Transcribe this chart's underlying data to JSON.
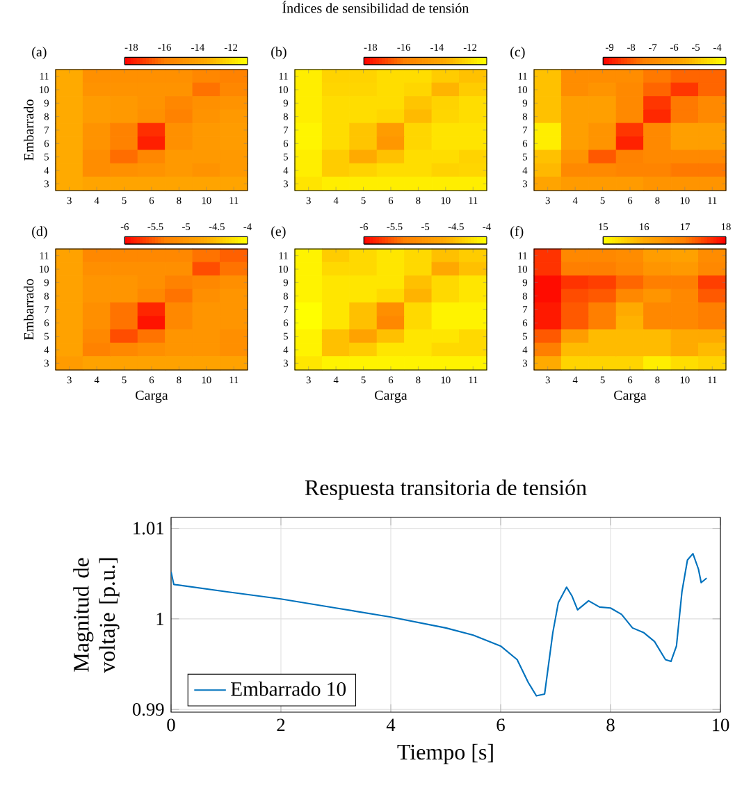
{
  "chart_data": [
    {
      "type": "heatmap",
      "annotations": [
        "(a)"
      ],
      "ylabel": "Embarrado",
      "categories": [
        "3",
        "4",
        "5",
        "6",
        "8",
        "10",
        "11"
      ],
      "y_categories": [
        "11",
        "10",
        "9",
        "8",
        "7",
        "6",
        "5",
        "4",
        "3"
      ],
      "clim": [
        -18.4,
        -11
      ],
      "cticks": [
        -18,
        -16,
        -14,
        -12
      ],
      "colors": [
        "#ff0000",
        "#ff8000",
        "#ffaa00",
        "#ffff00"
      ],
      "cells": [
        [
          -13.5,
          -15,
          -15,
          -15,
          -15,
          -15.5,
          -15.8
        ],
        [
          -13.5,
          -14.8,
          -14.8,
          -14.8,
          -14.8,
          -16.2,
          -15.5
        ],
        [
          -13.5,
          -14.3,
          -14.5,
          -14.8,
          -15.5,
          -15,
          -14.8
        ],
        [
          -13.5,
          -14.3,
          -14.5,
          -15,
          -15.8,
          -14.8,
          -14.5
        ],
        [
          -13.5,
          -14.8,
          -15.8,
          -17.5,
          -15,
          -14.5,
          -14.3
        ],
        [
          -13.5,
          -14.8,
          -15.8,
          -17.8,
          -15,
          -14.5,
          -14.3
        ],
        [
          -13.5,
          -15.2,
          -16.3,
          -15.5,
          -14.5,
          -14.5,
          -14.5
        ],
        [
          -13.5,
          -15.2,
          -15,
          -14.8,
          -14.5,
          -14.8,
          -14.5
        ],
        [
          -13.5,
          -13.8,
          -13.8,
          -13.8,
          -13.8,
          -13.8,
          -13.8
        ]
      ]
    },
    {
      "type": "heatmap",
      "title": "Índices de sensibilidad de tensión",
      "annotations": [
        "(b)"
      ],
      "categories": [
        "3",
        "4",
        "5",
        "6",
        "8",
        "10",
        "11"
      ],
      "y_categories": [
        "11",
        "10",
        "9",
        "8",
        "7",
        "6",
        "5",
        "4",
        "3"
      ],
      "clim": [
        -18.4,
        -11
      ],
      "cticks": [
        -18,
        -16,
        -14,
        -12
      ],
      "colors": [
        "#ff0000",
        "#ff8000",
        "#ffaa00",
        "#ffff00"
      ],
      "cells": [
        [
          -11.5,
          -12.3,
          -12.3,
          -12,
          -12,
          -12.5,
          -12.8
        ],
        [
          -11.5,
          -12.2,
          -12.2,
          -12,
          -12.2,
          -13.2,
          -12.5
        ],
        [
          -11.5,
          -12,
          -12,
          -12,
          -12.7,
          -12.3,
          -12
        ],
        [
          -11.5,
          -12,
          -12,
          -12.2,
          -13,
          -12.2,
          -12
        ],
        [
          -11.3,
          -12,
          -12.7,
          -14.3,
          -12.2,
          -11.8,
          -11.8
        ],
        [
          -11.3,
          -12,
          -12.7,
          -14.6,
          -12.2,
          -11.8,
          -11.8
        ],
        [
          -11.5,
          -12.5,
          -13.5,
          -12.8,
          -12,
          -12,
          -12.3
        ],
        [
          -11.5,
          -12.5,
          -12.3,
          -12,
          -12,
          -12.3,
          -12.2
        ],
        [
          -11.8,
          -11.5,
          -11.5,
          -11.5,
          -11.5,
          -11.5,
          -11.5
        ]
      ]
    },
    {
      "type": "heatmap",
      "annotations": [
        "(c)"
      ],
      "categories": [
        "3",
        "4",
        "5",
        "6",
        "8",
        "10",
        "11"
      ],
      "y_categories": [
        "11",
        "10",
        "9",
        "8",
        "7",
        "6",
        "5",
        "4",
        "3"
      ],
      "clim": [
        -9.3,
        -3.6
      ],
      "cticks": [
        -9,
        -8,
        -7,
        -6,
        -5,
        -4
      ],
      "colors": [
        "#ff0000",
        "#ff8000",
        "#ffaa00",
        "#ffff00"
      ],
      "cells": [
        [
          -5,
          -6.8,
          -6.8,
          -6.8,
          -7.5,
          -7.8,
          -7.8
        ],
        [
          -5,
          -6.8,
          -6.5,
          -7,
          -7.8,
          -8.5,
          -7.8
        ],
        [
          -5,
          -6,
          -6,
          -7,
          -8.5,
          -7.5,
          -7
        ],
        [
          -5,
          -6,
          -6,
          -7,
          -8.7,
          -7.5,
          -7
        ],
        [
          -4,
          -6,
          -6.5,
          -8.5,
          -7,
          -6,
          -6
        ],
        [
          -4,
          -6,
          -6.5,
          -8.8,
          -7,
          -6,
          -6
        ],
        [
          -5,
          -6.5,
          -8,
          -7.3,
          -7,
          -7,
          -7
        ],
        [
          -5.2,
          -7,
          -7,
          -7.2,
          -7.2,
          -7.5,
          -7.5
        ],
        [
          -5.8,
          -6.2,
          -6.2,
          -6.2,
          -6.5,
          -6.5,
          -6.5
        ]
      ]
    },
    {
      "type": "heatmap",
      "annotations": [
        "(d)"
      ],
      "xlabel": "Carga",
      "ylabel": "Embarrado",
      "categories": [
        "3",
        "4",
        "5",
        "6",
        "8",
        "10",
        "11"
      ],
      "y_categories": [
        "11",
        "10",
        "9",
        "8",
        "7",
        "6",
        "5",
        "4",
        "3"
      ],
      "clim": [
        -6,
        -4
      ],
      "cticks": [
        -6,
        -5.5,
        -5,
        -4.5,
        -4
      ],
      "colors": [
        "#ff0000",
        "#ff8000",
        "#ffaa00",
        "#ffff00"
      ],
      "cells": [
        [
          -4.8,
          -5.2,
          -5.2,
          -5.2,
          -5.2,
          -5.4,
          -5.5
        ],
        [
          -4.8,
          -5.1,
          -5.1,
          -5.1,
          -5.1,
          -5.6,
          -5.4
        ],
        [
          -4.8,
          -5,
          -5,
          -5.1,
          -5.3,
          -5.2,
          -5.1
        ],
        [
          -4.8,
          -5,
          -5,
          -5.2,
          -5.4,
          -5.1,
          -5
        ],
        [
          -4.8,
          -5.1,
          -5.4,
          -5.8,
          -5.2,
          -5,
          -5
        ],
        [
          -4.8,
          -5.1,
          -5.4,
          -5.9,
          -5.2,
          -5,
          -5
        ],
        [
          -4.8,
          -5.2,
          -5.6,
          -5.4,
          -5,
          -5,
          -5.1
        ],
        [
          -4.8,
          -5.3,
          -5.2,
          -5.1,
          -5,
          -5,
          -5.1
        ],
        [
          -4.9,
          -4.8,
          -4.8,
          -4.8,
          -4.8,
          -4.8,
          -4.8
        ]
      ]
    },
    {
      "type": "heatmap",
      "annotations": [
        "(e)"
      ],
      "xlabel": "Carga",
      "categories": [
        "3",
        "4",
        "5",
        "6",
        "8",
        "10",
        "11"
      ],
      "y_categories": [
        "11",
        "10",
        "9",
        "8",
        "7",
        "6",
        "5",
        "4",
        "3"
      ],
      "clim": [
        -6,
        -4
      ],
      "cticks": [
        -6,
        -5.5,
        -5,
        -4.5,
        -4
      ],
      "colors": [
        "#ff0000",
        "#ff8000",
        "#ffaa00",
        "#ffff00"
      ],
      "cells": [
        [
          -4.1,
          -4.4,
          -4.3,
          -4.2,
          -4.3,
          -4.5,
          -4.4
        ],
        [
          -4.1,
          -4.3,
          -4.3,
          -4.2,
          -4.3,
          -4.7,
          -4.5
        ],
        [
          -4.1,
          -4.2,
          -4.2,
          -4.2,
          -4.5,
          -4.3,
          -4.2
        ],
        [
          -4.1,
          -4.2,
          -4.2,
          -4.3,
          -4.6,
          -4.3,
          -4.2
        ],
        [
          -4,
          -4.2,
          -4.5,
          -5.1,
          -4.3,
          -4.1,
          -4.1
        ],
        [
          -4,
          -4.2,
          -4.5,
          -5.2,
          -4.3,
          -4.1,
          -4.1
        ],
        [
          -4.1,
          -4.5,
          -4.8,
          -4.5,
          -4.2,
          -4.2,
          -4.3
        ],
        [
          -4.1,
          -4.5,
          -4.4,
          -4.2,
          -4.2,
          -4.3,
          -4.3
        ],
        [
          -4.2,
          -4.1,
          -4.1,
          -4.1,
          -4.1,
          -4.1,
          -4.1
        ]
      ]
    },
    {
      "type": "heatmap",
      "annotations": [
        "(f)"
      ],
      "xlabel": "Carga",
      "categories": [
        "3",
        "4",
        "5",
        "6",
        "8",
        "10",
        "11"
      ],
      "y_categories": [
        "11",
        "10",
        "9",
        "8",
        "7",
        "6",
        "5",
        "4",
        "3"
      ],
      "clim": [
        15,
        18
      ],
      "cticks": [
        15,
        16,
        17,
        18
      ],
      "colors": [
        "#ffff00",
        "#ffaa00",
        "#ff8000",
        "#ff0000"
      ],
      "cells": [
        [
          17.6,
          16.8,
          16.8,
          16.7,
          16.3,
          16.2,
          16.7
        ],
        [
          17.6,
          17,
          17,
          16.8,
          16.5,
          16.4,
          16.8
        ],
        [
          17.9,
          17.6,
          17.5,
          17.2,
          17,
          17,
          17.5
        ],
        [
          17.9,
          17.4,
          17.3,
          16.8,
          16.5,
          16.8,
          17.3
        ],
        [
          17.8,
          17.3,
          17,
          16,
          16.8,
          16.8,
          17
        ],
        [
          17.8,
          17.3,
          17,
          15.9,
          16.8,
          16.8,
          17
        ],
        [
          17.3,
          16.3,
          15.8,
          15.8,
          15.8,
          16,
          16
        ],
        [
          17,
          15.8,
          15.8,
          15.8,
          15.8,
          16,
          15.8
        ],
        [
          16,
          15.5,
          15.5,
          15.5,
          15.2,
          15.4,
          15.5
        ]
      ]
    },
    {
      "type": "line",
      "title": "Respuesta transitoria de tensión",
      "xlabel": "Tiempo [s]",
      "ylabel": "Magnitud de voltaje [p.u.]",
      "xlim": [
        0,
        10
      ],
      "ylim": [
        0.9897,
        1.0112
      ],
      "xticks": [
        0,
        2,
        4,
        6,
        8,
        10
      ],
      "yticks": [
        0.99,
        1,
        1.01
      ],
      "grid": true,
      "legend": "bottom left",
      "series": [
        {
          "name": "Embarrado 10",
          "color": "#0072bd",
          "x": [
            0,
            0.05,
            1,
            2,
            3,
            4,
            5,
            5.5,
            6,
            6.3,
            6.5,
            6.65,
            6.8,
            6.95,
            7.05,
            7.2,
            7.3,
            7.4,
            7.6,
            7.8,
            8.0,
            8.2,
            8.4,
            8.6,
            8.8,
            9.0,
            9.1,
            9.2,
            9.3,
            9.4,
            9.5,
            9.6,
            9.65,
            9.75
          ],
          "values": [
            1.0052,
            1.0038,
            1.003,
            1.0022,
            1.0012,
            1.0002,
            0.999,
            0.9982,
            0.997,
            0.9955,
            0.993,
            0.9915,
            0.9917,
            0.9985,
            1.0018,
            1.0035,
            1.0025,
            1.001,
            1.002,
            1.0013,
            1.0012,
            1.0005,
            0.999,
            0.9985,
            0.9975,
            0.9955,
            0.9953,
            0.997,
            1.003,
            1.0065,
            1.0072,
            1.0055,
            1.004,
            1.0045
          ]
        }
      ]
    }
  ]
}
